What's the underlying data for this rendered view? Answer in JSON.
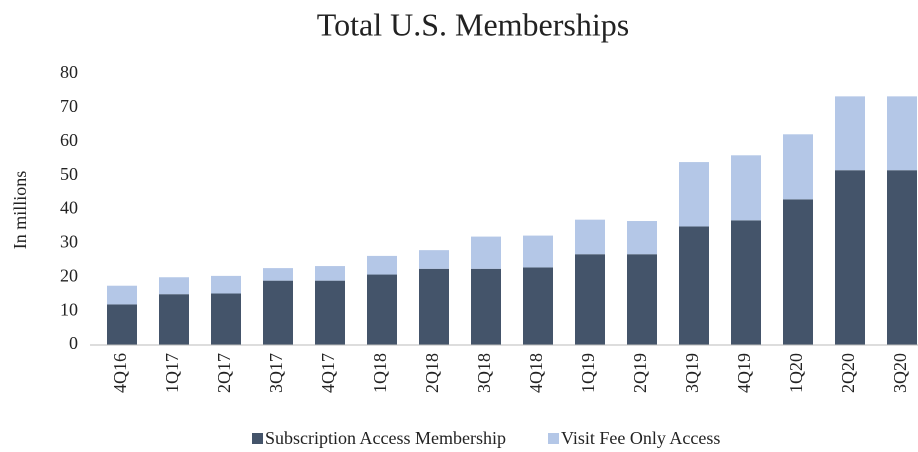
{
  "chart_data": {
    "type": "stacked_bar",
    "title": "Total U.S. Memberships",
    "y_label": "In millions",
    "categories": [
      "4Q16",
      "1Q17",
      "2Q17",
      "3Q17",
      "4Q17",
      "1Q18",
      "2Q18",
      "3Q18",
      "4Q18",
      "1Q19",
      "2Q19",
      "3Q19",
      "4Q19",
      "1Q20",
      "2Q20",
      "3Q20"
    ],
    "series": [
      {
        "name": "Subscription Access Membership",
        "color": "#44546a",
        "values": [
          12,
          15,
          15.2,
          19,
          19,
          20.8,
          22.5,
          22.5,
          22.9,
          26.8,
          26.8,
          35,
          36.8,
          43,
          51.6,
          51.6
        ]
      },
      {
        "name": "Visit Fee Only Access",
        "color": "#b4c7e7",
        "values": [
          5.5,
          5,
          5.2,
          3.7,
          4.3,
          5.5,
          5.5,
          9.5,
          9.4,
          10.2,
          9.8,
          19,
          19.2,
          19.2,
          21.8,
          21.8
        ]
      }
    ],
    "ylim": [
      0,
      80
    ],
    "yticks": [
      0,
      10,
      20,
      30,
      40,
      50,
      60,
      70,
      80
    ],
    "grid": false,
    "legend": "bottom"
  }
}
